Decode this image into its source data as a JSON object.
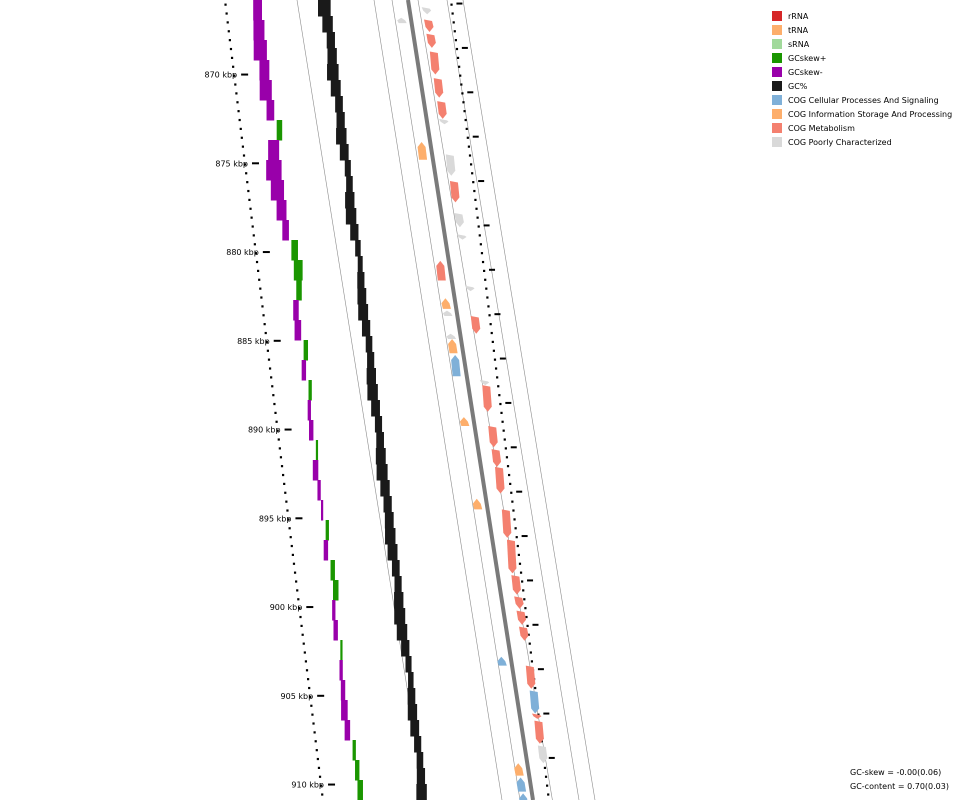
{
  "legend": [
    {
      "label": "rRNA",
      "color": "#d62728"
    },
    {
      "label": "tRNA",
      "color": "#fdae6b"
    },
    {
      "label": "sRNA",
      "color": "#a1d99b"
    },
    {
      "label": "GCskew+",
      "color": "#1a9600"
    },
    {
      "label": "GCskew-",
      "color": "#9900aa"
    },
    {
      "label": "GC%",
      "color": "#1a1a1a"
    },
    {
      "label": "COG Cellular Processes And Signaling",
      "color": "#7fb0d8"
    },
    {
      "label": "COG Information Storage And Processing",
      "color": "#fdae6b"
    },
    {
      "label": "COG Metabolism",
      "color": "#f4806f"
    },
    {
      "label": "COG Poorly Characterized",
      "color": "#d9d9d9"
    }
  ],
  "ticks": [
    {
      "label": "870 kbp",
      "kbp": 870
    },
    {
      "label": "875 kbp",
      "kbp": 875
    },
    {
      "label": "880 kbp",
      "kbp": 880
    },
    {
      "label": "885 kbp",
      "kbp": 885
    },
    {
      "label": "890 kbp",
      "kbp": 890
    },
    {
      "label": "895 kbp",
      "kbp": 895
    },
    {
      "label": "900 kbp",
      "kbp": 900
    },
    {
      "label": "905 kbp",
      "kbp": 905
    },
    {
      "label": "910 kbp",
      "kbp": 910
    }
  ],
  "stats": {
    "gc_skew": "GC-skew = -0.00(0.06)",
    "gc_content": "GC-content = 0.70(0.03)"
  },
  "genes": [
    {
      "start": 866.2,
      "end": 866.6,
      "strand": "+",
      "cat": "poor"
    },
    {
      "start": 866.9,
      "end": 867.6,
      "strand": "+",
      "cat": "metab"
    },
    {
      "start": 867.7,
      "end": 868.5,
      "strand": "+",
      "cat": "metab"
    },
    {
      "start": 868.7,
      "end": 870.0,
      "strand": "+",
      "cat": "metab"
    },
    {
      "start": 870.2,
      "end": 871.3,
      "strand": "+",
      "cat": "metab"
    },
    {
      "start": 871.5,
      "end": 872.5,
      "strand": "+",
      "cat": "metab"
    },
    {
      "start": 872.5,
      "end": 872.8,
      "strand": "+",
      "cat": "poor"
    },
    {
      "start": 866.8,
      "end": 867.1,
      "strand": "-",
      "cat": "poor"
    },
    {
      "start": 873.8,
      "end": 874.8,
      "strand": "-",
      "cat": "info"
    },
    {
      "start": 874.5,
      "end": 875.7,
      "strand": "+",
      "cat": "poor"
    },
    {
      "start": 876.0,
      "end": 877.2,
      "strand": "+",
      "cat": "metab"
    },
    {
      "start": 877.8,
      "end": 878.6,
      "strand": "+",
      "cat": "poor"
    },
    {
      "start": 879.0,
      "end": 879.3,
      "strand": "+",
      "cat": "poor"
    },
    {
      "start": 880.5,
      "end": 881.6,
      "strand": "-",
      "cat": "metab"
    },
    {
      "start": 881.9,
      "end": 882.2,
      "strand": "+",
      "cat": "poor"
    },
    {
      "start": 882.6,
      "end": 883.2,
      "strand": "-",
      "cat": "info"
    },
    {
      "start": 883.3,
      "end": 883.6,
      "strand": "-",
      "cat": "poor"
    },
    {
      "start": 883.6,
      "end": 884.6,
      "strand": "+",
      "cat": "metab"
    },
    {
      "start": 884.6,
      "end": 884.9,
      "strand": "-",
      "cat": "poor"
    },
    {
      "start": 884.9,
      "end": 885.7,
      "strand": "-",
      "cat": "info"
    },
    {
      "start": 885.8,
      "end": 887.0,
      "strand": "-",
      "cat": "cell"
    },
    {
      "start": 887.2,
      "end": 887.5,
      "strand": "+",
      "cat": "poor"
    },
    {
      "start": 887.5,
      "end": 889.0,
      "strand": "+",
      "cat": "metab"
    },
    {
      "start": 889.3,
      "end": 889.8,
      "strand": "-",
      "cat": "info"
    },
    {
      "start": 889.8,
      "end": 891.0,
      "strand": "+",
      "cat": "metab"
    },
    {
      "start": 891.1,
      "end": 892.1,
      "strand": "+",
      "cat": "metab"
    },
    {
      "start": 892.1,
      "end": 893.6,
      "strand": "+",
      "cat": "metab"
    },
    {
      "start": 893.9,
      "end": 894.5,
      "strand": "-",
      "cat": "info"
    },
    {
      "start": 894.5,
      "end": 896.1,
      "strand": "+",
      "cat": "metab"
    },
    {
      "start": 896.2,
      "end": 898.1,
      "strand": "+",
      "cat": "metab"
    },
    {
      "start": 898.2,
      "end": 899.3,
      "strand": "+",
      "cat": "metab"
    },
    {
      "start": 899.4,
      "end": 900.1,
      "strand": "+",
      "cat": "metab"
    },
    {
      "start": 900.2,
      "end": 901.0,
      "strand": "+",
      "cat": "metab"
    },
    {
      "start": 901.1,
      "end": 901.9,
      "strand": "+",
      "cat": "metab"
    },
    {
      "start": 902.8,
      "end": 903.3,
      "strand": "-",
      "cat": "cell"
    },
    {
      "start": 903.3,
      "end": 904.6,
      "strand": "+",
      "cat": "metab"
    },
    {
      "start": 904.7,
      "end": 906.0,
      "strand": "+",
      "cat": "cell"
    },
    {
      "start": 906.0,
      "end": 906.3,
      "strand": "+",
      "cat": "metab"
    },
    {
      "start": 906.4,
      "end": 907.7,
      "strand": "+",
      "cat": "metab"
    },
    {
      "start": 907.8,
      "end": 908.8,
      "strand": "+",
      "cat": "poor"
    },
    {
      "start": 908.8,
      "end": 909.5,
      "strand": "-",
      "cat": "info"
    },
    {
      "start": 909.6,
      "end": 910.4,
      "strand": "-",
      "cat": "cell"
    },
    {
      "start": 910.5,
      "end": 911.3,
      "strand": "-",
      "cat": "cell"
    }
  ],
  "gc_percent": [
    0.78,
    0.74,
    0.7,
    0.72,
    0.76,
    0.73,
    0.69,
    0.7,
    0.74,
    0.71,
    0.66,
    0.67,
    0.72,
    0.74,
    0.7,
    0.65,
    0.64,
    0.68,
    0.71,
    0.73,
    0.7,
    0.67,
    0.68,
    0.72,
    0.74,
    0.71,
    0.68,
    0.69,
    0.73,
    0.75,
    0.72,
    0.7,
    0.71,
    0.74,
    0.73,
    0.69,
    0.68,
    0.72,
    0.75,
    0.74,
    0.7,
    0.66,
    0.65,
    0.69,
    0.72,
    0.71,
    0.68,
    0.67,
    0.7,
    0.74
  ],
  "gc_skew": [
    -0.08,
    -0.1,
    -0.12,
    -0.09,
    -0.11,
    -0.07,
    0.05,
    -0.1,
    -0.14,
    -0.12,
    -0.09,
    -0.06,
    0.06,
    0.08,
    0.05,
    -0.05,
    -0.06,
    0.04,
    -0.04,
    0.03,
    -0.03,
    -0.04,
    0.02,
    -0.05,
    -0.03,
    -0.02,
    0.03,
    -0.04,
    0.04,
    0.05,
    -0.03,
    -0.04,
    0.02,
    -0.03,
    -0.04,
    -0.06,
    -0.05,
    0.03,
    0.04,
    0.05
  ]
}
